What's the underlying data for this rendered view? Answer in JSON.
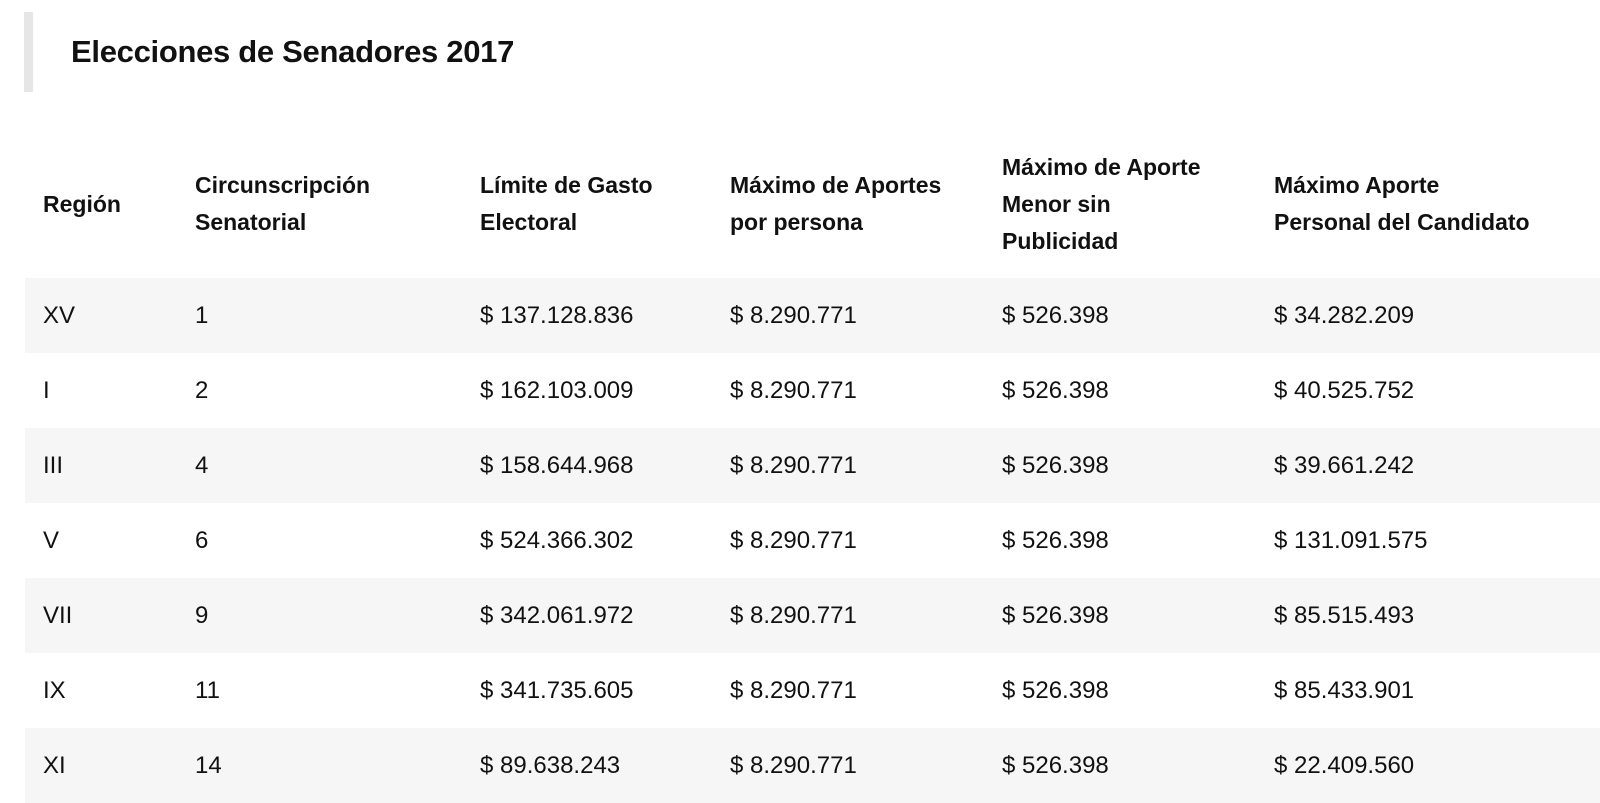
{
  "title": "Elecciones de Senadores 2017",
  "table": {
    "headers": [
      [
        "Región"
      ],
      [
        "Circunscripción",
        "Senatorial"
      ],
      [
        "Límite de Gasto",
        "Electoral"
      ],
      [
        "Máximo de Aportes",
        "por persona"
      ],
      [
        "Máximo de Aporte",
        "Menor sin",
        "Publicidad"
      ],
      [
        "Máximo Aporte",
        "Personal del Candidato"
      ]
    ],
    "rows": [
      [
        "XV",
        "1",
        "$ 137.128.836",
        "$ 8.290.771",
        "$ 526.398",
        "$ 34.282.209"
      ],
      [
        "I",
        "2",
        "$ 162.103.009",
        "$ 8.290.771",
        "$ 526.398",
        "$ 40.525.752"
      ],
      [
        "III",
        "4",
        "$ 158.644.968",
        "$ 8.290.771",
        "$ 526.398",
        "$ 39.661.242"
      ],
      [
        "V",
        "6",
        "$ 524.366.302",
        "$ 8.290.771",
        "$ 526.398",
        "$ 131.091.575"
      ],
      [
        "VII",
        "9",
        "$ 342.061.972",
        "$ 8.290.771",
        "$ 526.398",
        "$ 85.515.493"
      ],
      [
        "IX",
        "11",
        "$ 341.735.605",
        "$ 8.290.771",
        "$ 526.398",
        "$ 85.433.901"
      ],
      [
        "XI",
        "14",
        "$ 89.638.243",
        "$ 8.290.771",
        "$ 526.398",
        "$ 22.409.560"
      ]
    ]
  }
}
